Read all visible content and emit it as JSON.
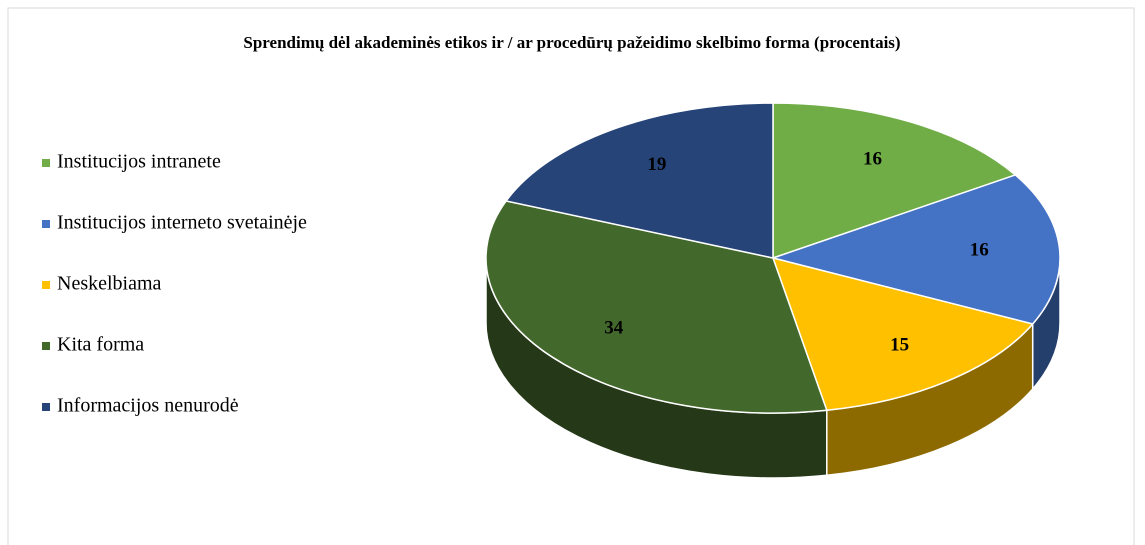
{
  "chart_data": {
    "type": "pie",
    "title": "Sprendimų dėl akademinės etikos ir / ar procedūrų pažeidimo skelbimo forma (procentais)",
    "categories": [
      "Institucijos intranete",
      "Institucijos interneto svetainėje",
      "Neskelbiama",
      "Kita forma",
      "Informacijos nenurodė"
    ],
    "values": [
      16,
      16,
      15,
      34,
      19
    ],
    "colors": [
      "#70ad47",
      "#4472c4",
      "#ffc000",
      "#43682b",
      "#264478"
    ],
    "legend": "left"
  }
}
